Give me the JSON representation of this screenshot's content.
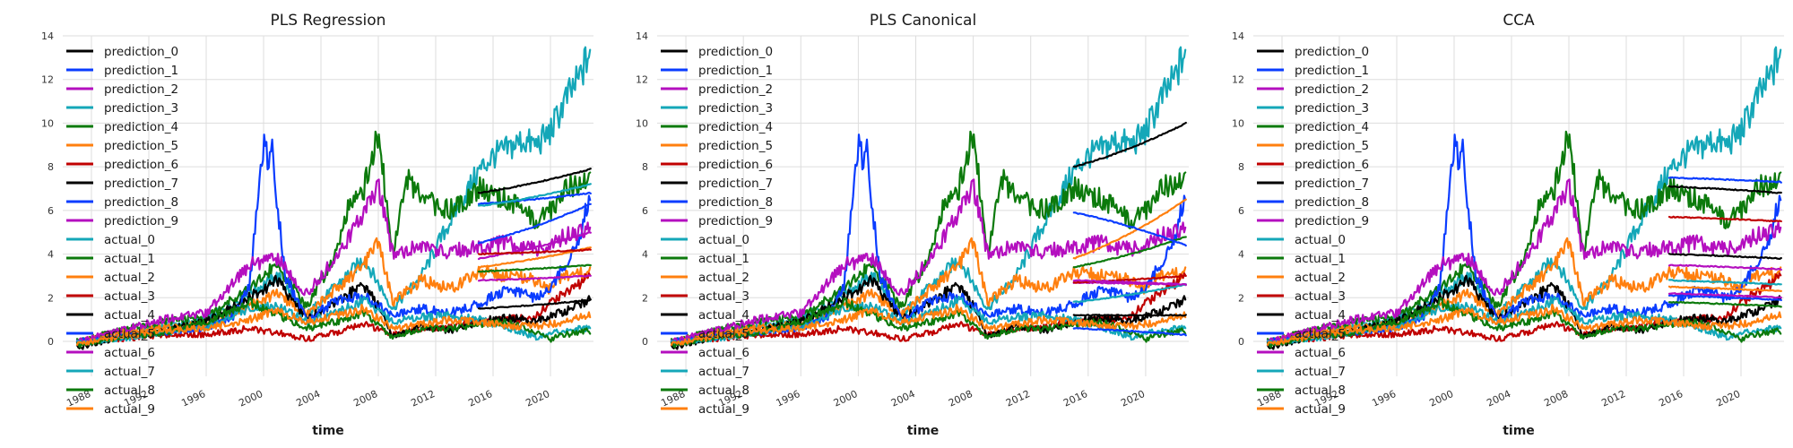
{
  "chart_data": [
    {
      "type": "line",
      "title": "PLS Regression",
      "xlabel": "time",
      "ylabel": "",
      "xlim": [
        1986,
        2023
      ],
      "ylim": [
        -1.6,
        14
      ],
      "yticks": [
        0,
        2,
        4,
        6,
        8,
        10,
        12,
        14
      ],
      "xticks": [
        "1988",
        "1992",
        "1996",
        "2000",
        "2004",
        "2008",
        "2012",
        "2016",
        "2020"
      ],
      "legend": "top-left",
      "grid": true,
      "forecast_start": 2015,
      "prediction_ends": [
        7.9,
        6.8,
        5.0,
        7.2,
        3.5,
        4.3,
        4.2,
        1.9,
        6.3,
        3.0
      ],
      "prediction_starts": [
        6.8,
        6.3,
        3.8,
        6.2,
        3.2,
        3.4,
        4.0,
        1.5,
        4.5,
        2.8
      ]
    },
    {
      "type": "line",
      "title": "PLS Canonical",
      "xlabel": "time",
      "ylabel": "",
      "xlim": [
        1986,
        2023
      ],
      "ylim": [
        -1.6,
        14
      ],
      "yticks": [
        0,
        2,
        4,
        6,
        8,
        10,
        12,
        14
      ],
      "xticks": [
        "1988",
        "1992",
        "1996",
        "2000",
        "2004",
        "2008",
        "2012",
        "2016",
        "2020"
      ],
      "legend": "top-left",
      "grid": true,
      "forecast_start": 2015,
      "prediction_ends": [
        10.0,
        0.3,
        2.6,
        2.6,
        4.8,
        6.5,
        3.0,
        1.2,
        4.4,
        2.6
      ],
      "prediction_starts": [
        8.0,
        0.6,
        2.7,
        1.8,
        3.4,
        3.8,
        2.7,
        1.2,
        5.9,
        2.8
      ]
    },
    {
      "type": "line",
      "title": "CCA",
      "xlabel": "time",
      "ylabel": "",
      "xlim": [
        1986,
        2023
      ],
      "ylim": [
        -1.6,
        14
      ],
      "yticks": [
        0,
        2,
        4,
        6,
        8,
        10,
        12,
        14
      ],
      "xticks": [
        "1988",
        "1992",
        "1996",
        "2000",
        "2004",
        "2008",
        "2012",
        "2016",
        "2020"
      ],
      "legend": "top-left",
      "grid": true,
      "forecast_start": 2015,
      "prediction_ends": [
        6.8,
        7.3,
        3.3,
        2.6,
        1.6,
        2.3,
        5.5,
        3.8,
        1.9,
        2.0
      ],
      "prediction_starts": [
        7.1,
        7.5,
        3.5,
        2.8,
        1.8,
        2.5,
        5.7,
        4.0,
        2.1,
        2.2
      ]
    }
  ],
  "legend_entries": [
    {
      "label": "prediction_0",
      "color": "#000000"
    },
    {
      "label": "prediction_1",
      "color": "#0a3cff"
    },
    {
      "label": "prediction_2",
      "color": "#b40fbf"
    },
    {
      "label": "prediction_3",
      "color": "#14a7b8"
    },
    {
      "label": "prediction_4",
      "color": "#0c7a0c"
    },
    {
      "label": "prediction_5",
      "color": "#ff7f0e"
    },
    {
      "label": "prediction_6",
      "color": "#c00000"
    },
    {
      "label": "prediction_7",
      "color": "#000000"
    },
    {
      "label": "prediction_8",
      "color": "#0a3cff"
    },
    {
      "label": "prediction_9",
      "color": "#b40fbf"
    },
    {
      "label": "actual_0",
      "color": "#14a7b8"
    },
    {
      "label": "actual_1",
      "color": "#0c7a0c"
    },
    {
      "label": "actual_2",
      "color": "#ff7f0e"
    },
    {
      "label": "actual_3",
      "color": "#c00000"
    },
    {
      "label": "actual_4",
      "color": "#000000"
    },
    {
      "label": "actual_5",
      "color": "#0a3cff"
    },
    {
      "label": "actual_6",
      "color": "#b40fbf"
    },
    {
      "label": "actual_7",
      "color": "#14a7b8"
    },
    {
      "label": "actual_8",
      "color": "#0c7a0c"
    },
    {
      "label": "actual_9",
      "color": "#ff7f0e"
    }
  ],
  "actual_series": [
    {
      "name": "actual_0",
      "color": "#14a7b8",
      "years": [
        1987,
        1990,
        1993,
        1996,
        1999,
        2001,
        2003,
        2005,
        2007,
        2009,
        2011,
        2013,
        2015,
        2016,
        2017,
        2018,
        2019,
        2020,
        2021,
        2022,
        2022.8
      ],
      "values": [
        0,
        0.3,
        0.7,
        1.0,
        2.2,
        3.0,
        1.2,
        2.5,
        3.8,
        1.5,
        3.0,
        5.5,
        7.8,
        8.5,
        8.8,
        9.2,
        9.0,
        9.6,
        11.0,
        12.0,
        13.4
      ]
    },
    {
      "name": "actual_1",
      "color": "#0c7a0c",
      "years": [
        1987,
        1990,
        1993,
        1996,
        1999,
        2001,
        2003,
        2005,
        2006,
        2007,
        2008,
        2009,
        2010,
        2011,
        2013,
        2015,
        2017,
        2019,
        2020,
        2021,
        2022.8
      ],
      "values": [
        0,
        0.5,
        0.9,
        1.1,
        2.5,
        3.5,
        1.5,
        4.0,
        6.5,
        7.0,
        9.6,
        4.0,
        7.5,
        6.5,
        6.0,
        7.0,
        6.5,
        5.5,
        6.0,
        7.0,
        7.5
      ]
    },
    {
      "name": "actual_2",
      "color": "#ff7f0e",
      "years": [
        1987,
        1990,
        1993,
        1996,
        1999,
        2001,
        2003,
        2005,
        2007,
        2008,
        2009,
        2011,
        2013,
        2015,
        2017,
        2019,
        2020,
        2021,
        2022.8
      ],
      "values": [
        0,
        0.4,
        0.6,
        0.8,
        1.6,
        2.2,
        1.2,
        2.4,
        3.5,
        4.5,
        1.8,
        2.8,
        2.4,
        3.2,
        3.0,
        2.8,
        2.4,
        3.0,
        3.1
      ]
    },
    {
      "name": "actual_3",
      "color": "#c00000",
      "years": [
        1987,
        1990,
        1993,
        1996,
        1999,
        2001,
        2003,
        2005,
        2007,
        2009,
        2011,
        2013,
        2015,
        2017,
        2019,
        2020,
        2021,
        2022.8
      ],
      "values": [
        0,
        0.1,
        0.3,
        0.3,
        0.6,
        0.4,
        0.1,
        0.4,
        0.8,
        0.3,
        0.6,
        0.7,
        0.9,
        1.0,
        1.1,
        1.8,
        2.2,
        3.0
      ]
    },
    {
      "name": "actual_4",
      "color": "#000000",
      "years": [
        1987,
        1990,
        1993,
        1996,
        1999,
        2001,
        2003,
        2005,
        2007,
        2008,
        2009,
        2011,
        2013,
        2015,
        2017,
        2019,
        2021,
        2022.8
      ],
      "values": [
        -0.3,
        0.2,
        0.5,
        0.9,
        2.0,
        2.8,
        1.0,
        1.8,
        2.6,
        1.6,
        0.2,
        0.7,
        0.5,
        0.9,
        1.1,
        0.9,
        1.4,
        1.9
      ]
    },
    {
      "name": "actual_5",
      "color": "#0a3cff",
      "years": [
        1987,
        1990,
        1993,
        1996,
        1998,
        1999,
        2000,
        2000.3,
        2000.6,
        2001,
        2001.5,
        2003,
        2005,
        2007,
        2009,
        2011,
        2013,
        2015,
        2017,
        2019,
        2020,
        2021,
        2022,
        2022.8
      ],
      "values": [
        0,
        0.2,
        0.4,
        0.6,
        1.2,
        2.5,
        9.2,
        8.2,
        9.0,
        6.0,
        3.0,
        1.0,
        1.8,
        2.1,
        1.2,
        1.5,
        1.3,
        1.7,
        2.4,
        2.0,
        2.5,
        3.5,
        4.8,
        6.8
      ]
    },
    {
      "name": "actual_6",
      "color": "#b40fbf",
      "years": [
        1987,
        1990,
        1993,
        1996,
        1999,
        2001,
        2003,
        2005,
        2007,
        2008,
        2009,
        2011,
        2013,
        2015,
        2017,
        2019,
        2021,
        2022.8
      ],
      "values": [
        0,
        0.5,
        1.0,
        1.3,
        3.5,
        3.8,
        2.2,
        3.8,
        5.8,
        7.2,
        4.0,
        4.3,
        4.1,
        4.3,
        4.5,
        4.2,
        4.8,
        5.2
      ]
    },
    {
      "name": "actual_7",
      "color": "#14a7b8",
      "years": [
        1987,
        1990,
        1993,
        1996,
        1999,
        2001,
        2003,
        2005,
        2007,
        2009,
        2011,
        2013,
        2015,
        2017,
        2019,
        2021,
        2022.8
      ],
      "values": [
        -0.1,
        0.1,
        0.4,
        0.7,
        1.5,
        1.6,
        0.9,
        1.3,
        1.9,
        0.9,
        1.1,
        1.2,
        1.0,
        0.6,
        0.2,
        0.5,
        0.6
      ]
    },
    {
      "name": "actual_8",
      "color": "#0c7a0c",
      "years": [
        1987,
        1990,
        1993,
        1996,
        1999,
        2001,
        2003,
        2005,
        2007,
        2009,
        2011,
        2013,
        2015,
        2017,
        2019,
        2020,
        2021,
        2022.8
      ],
      "values": [
        -0.2,
        0.2,
        0.4,
        0.9,
        1.8,
        1.2,
        0.6,
        0.9,
        1.3,
        0.2,
        0.6,
        0.6,
        0.8,
        0.9,
        0.4,
        0.1,
        0.3,
        0.5
      ]
    },
    {
      "name": "actual_9",
      "color": "#ff7f0e",
      "years": [
        1987,
        1990,
        1993,
        1996,
        1999,
        2001,
        2003,
        2005,
        2007,
        2009,
        2011,
        2013,
        2015,
        2017,
        2019,
        2021,
        2022.8
      ],
      "values": [
        -0.1,
        0.2,
        0.5,
        0.6,
        1.0,
        1.4,
        0.9,
        1.2,
        1.5,
        0.6,
        0.8,
        1.0,
        0.9,
        0.7,
        0.7,
        0.9,
        1.2
      ]
    }
  ],
  "colors": {
    "prediction": [
      "#000000",
      "#0a3cff",
      "#b40fbf",
      "#14a7b8",
      "#0c7a0c",
      "#ff7f0e",
      "#c00000",
      "#000000",
      "#0a3cff",
      "#b40fbf"
    ]
  }
}
